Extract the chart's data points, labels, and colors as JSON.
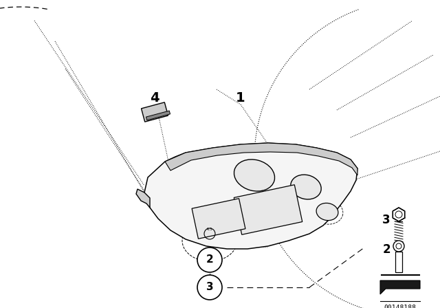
{
  "bg_color": "#ffffff",
  "part_number": "00148188",
  "line_color": "#000000"
}
